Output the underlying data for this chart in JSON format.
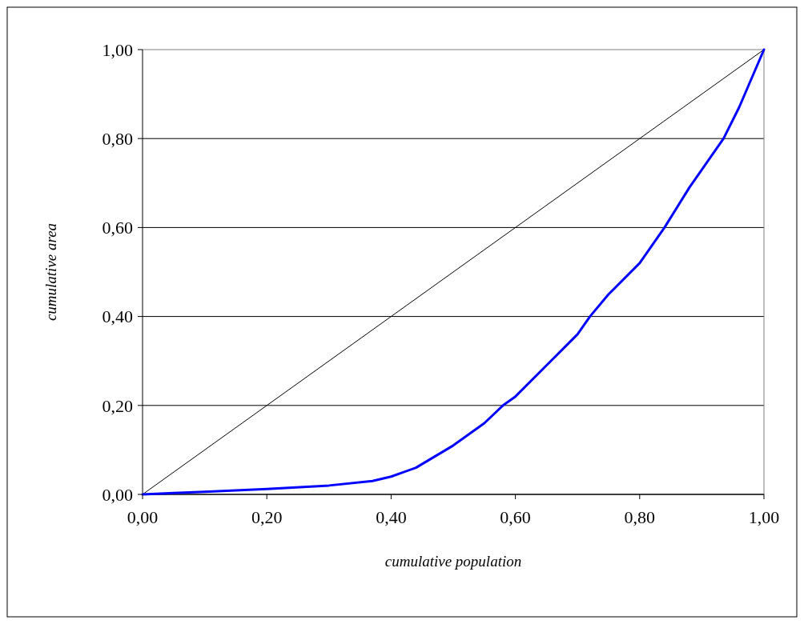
{
  "chart_data": {
    "type": "line",
    "xlabel": "cumulative population",
    "ylabel": "cumulative area",
    "xlim": [
      0,
      1
    ],
    "ylim": [
      0,
      1
    ],
    "xticks": [
      {
        "value": 0,
        "label": "0,00"
      },
      {
        "value": 0.2,
        "label": "0,20"
      },
      {
        "value": 0.4,
        "label": "0,40"
      },
      {
        "value": 0.6,
        "label": "0,60"
      },
      {
        "value": 0.8,
        "label": "0,80"
      },
      {
        "value": 1,
        "label": "1,00"
      }
    ],
    "yticks": [
      {
        "value": 0,
        "label": "0,00"
      },
      {
        "value": 0.2,
        "label": "0,20"
      },
      {
        "value": 0.4,
        "label": "0,40"
      },
      {
        "value": 0.6,
        "label": "0,60"
      },
      {
        "value": 0.8,
        "label": "0,80"
      },
      {
        "value": 1,
        "label": "1,00"
      }
    ],
    "grid": "y",
    "series": [
      {
        "color": "#000000",
        "x": [
          0,
          1
        ],
        "values": [
          0,
          1
        ]
      },
      {
        "color": "#0000ff",
        "x": [
          0,
          0.05,
          0.1,
          0.2,
          0.3,
          0.37,
          0.4,
          0.44,
          0.5,
          0.55,
          0.58,
          0.6,
          0.65,
          0.7,
          0.72,
          0.75,
          0.8,
          0.84,
          0.88,
          0.9,
          0.935,
          0.96,
          1
        ],
        "values": [
          0,
          0.003,
          0.006,
          0.012,
          0.02,
          0.03,
          0.04,
          0.06,
          0.11,
          0.16,
          0.2,
          0.22,
          0.29,
          0.36,
          0.4,
          0.45,
          0.52,
          0.6,
          0.69,
          0.73,
          0.8,
          0.87,
          1
        ]
      }
    ]
  }
}
